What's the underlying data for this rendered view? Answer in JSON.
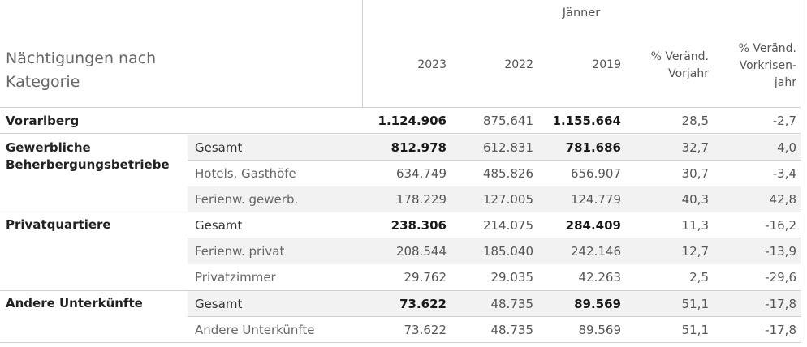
{
  "header": {
    "group_title": "Jänner",
    "category_title": "Nächtigungen nach Kategorie",
    "columns": [
      "2023",
      "2022",
      "2019",
      "% Veränd.\nVorjahr",
      "% Veränd.\nVorkrisen-\njahr"
    ]
  },
  "vorarlberg": {
    "label": "Vorarlberg",
    "values": [
      "1.124.906",
      "875.641",
      "1.155.664",
      "28,5",
      "-2,7"
    ]
  },
  "groups": [
    {
      "label": "Gewerbliche Beherbergungsbetriebe",
      "rows": [
        {
          "label": "Gesamt",
          "values": [
            "812.978",
            "612.831",
            "781.686",
            "32,7",
            "4,0"
          ]
        },
        {
          "label": "Hotels, Gasthöfe",
          "values": [
            "634.749",
            "485.826",
            "656.907",
            "30,7",
            "-3,4"
          ]
        },
        {
          "label": "Ferienw. gewerb.",
          "values": [
            "178.229",
            "127.005",
            "124.779",
            "40,3",
            "42,8"
          ]
        }
      ]
    },
    {
      "label": "Privatquartiere",
      "rows": [
        {
          "label": "Gesamt",
          "values": [
            "238.306",
            "214.075",
            "284.409",
            "11,3",
            "-16,2"
          ]
        },
        {
          "label": "Ferienw. privat",
          "values": [
            "208.544",
            "185.040",
            "242.146",
            "12,7",
            "-13,9"
          ]
        },
        {
          "label": "Privatzimmer",
          "values": [
            "29.762",
            "29.035",
            "42.263",
            "2,5",
            "-29,6"
          ]
        }
      ]
    },
    {
      "label": "Andere Unterkünfte",
      "rows": [
        {
          "label": "Gesamt",
          "values": [
            "73.622",
            "48.735",
            "89.569",
            "51,1",
            "-17,8"
          ]
        },
        {
          "label": "Andere Unterkünfte",
          "values": [
            "73.622",
            "48.735",
            "89.569",
            "51,1",
            "-17,8"
          ]
        }
      ]
    }
  ]
}
